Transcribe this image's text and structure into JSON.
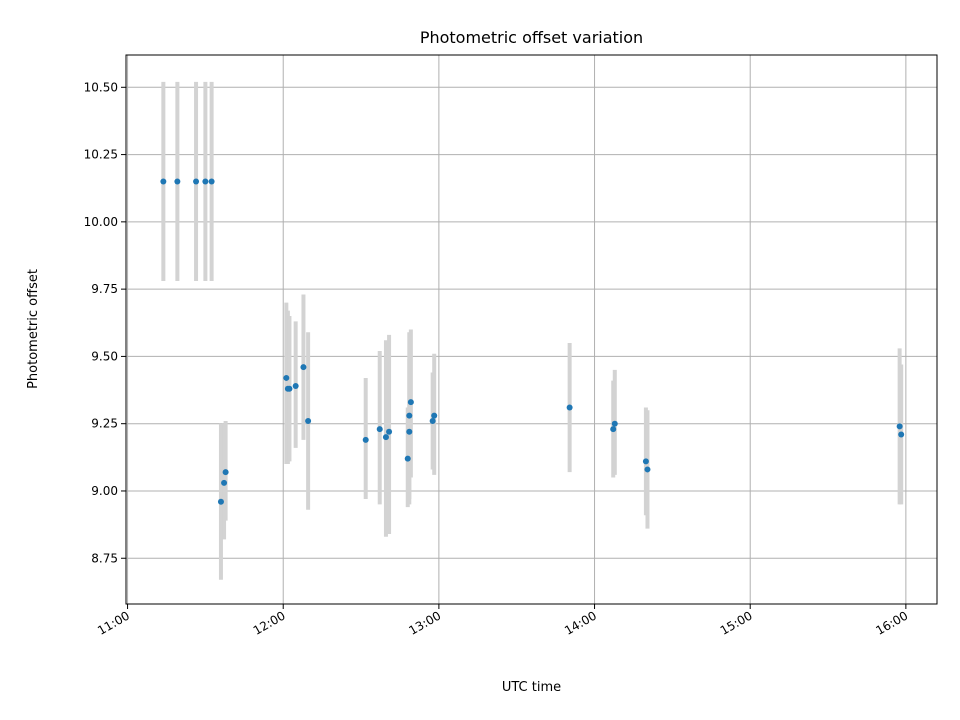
{
  "chart_data": {
    "type": "scatter",
    "title": "Photometric offset variation",
    "xlabel": "UTC time",
    "ylabel": "Photometric offset",
    "x_unit": "hours UTC",
    "xlim": [
      10.99,
      16.2
    ],
    "ylim": [
      8.58,
      10.62
    ],
    "x_ticks": [
      {
        "value": 11,
        "label": "11:00"
      },
      {
        "value": 12,
        "label": "12:00"
      },
      {
        "value": 13,
        "label": "13:00"
      },
      {
        "value": 14,
        "label": "14:00"
      },
      {
        "value": 15,
        "label": "15:00"
      },
      {
        "value": 16,
        "label": "16:00"
      }
    ],
    "y_ticks": [
      {
        "value": 8.75,
        "label": "8.75"
      },
      {
        "value": 9.0,
        "label": "9.00"
      },
      {
        "value": 9.25,
        "label": "9.25"
      },
      {
        "value": 9.5,
        "label": "9.50"
      },
      {
        "value": 9.75,
        "label": "9.75"
      },
      {
        "value": 10.0,
        "label": "10.00"
      },
      {
        "value": 10.25,
        "label": "10.25"
      },
      {
        "value": 10.5,
        "label": "10.50"
      }
    ],
    "grid": true,
    "marker_color": "#1f77b4",
    "errorbar_color": "#d3d3d3",
    "points": [
      {
        "x": 11.23,
        "y": 10.15,
        "lo": 9.78,
        "hi": 10.52
      },
      {
        "x": 11.32,
        "y": 10.15,
        "lo": 9.78,
        "hi": 10.52
      },
      {
        "x": 11.44,
        "y": 10.15,
        "lo": 9.78,
        "hi": 10.52
      },
      {
        "x": 11.5,
        "y": 10.15,
        "lo": 9.78,
        "hi": 10.52
      },
      {
        "x": 11.54,
        "y": 10.15,
        "lo": 9.78,
        "hi": 10.52
      },
      {
        "x": 11.6,
        "y": 8.96,
        "lo": 8.67,
        "hi": 9.25
      },
      {
        "x": 11.62,
        "y": 9.03,
        "lo": 8.82,
        "hi": 9.25
      },
      {
        "x": 11.63,
        "y": 9.07,
        "lo": 8.89,
        "hi": 9.26
      },
      {
        "x": 12.02,
        "y": 9.42,
        "lo": 9.1,
        "hi": 9.7
      },
      {
        "x": 12.03,
        "y": 9.38,
        "lo": 9.1,
        "hi": 9.67
      },
      {
        "x": 12.04,
        "y": 9.38,
        "lo": 9.11,
        "hi": 9.65
      },
      {
        "x": 12.08,
        "y": 9.39,
        "lo": 9.16,
        "hi": 9.63
      },
      {
        "x": 12.13,
        "y": 9.46,
        "lo": 9.19,
        "hi": 9.73
      },
      {
        "x": 12.16,
        "y": 9.26,
        "lo": 8.93,
        "hi": 9.59
      },
      {
        "x": 12.53,
        "y": 9.19,
        "lo": 8.97,
        "hi": 9.42
      },
      {
        "x": 12.62,
        "y": 9.23,
        "lo": 8.95,
        "hi": 9.52
      },
      {
        "x": 12.66,
        "y": 9.2,
        "lo": 8.83,
        "hi": 9.56
      },
      {
        "x": 12.68,
        "y": 9.22,
        "lo": 8.84,
        "hi": 9.58
      },
      {
        "x": 12.8,
        "y": 9.12,
        "lo": 8.94,
        "hi": 9.31
      },
      {
        "x": 12.81,
        "y": 9.22,
        "lo": 8.95,
        "hi": 9.49
      },
      {
        "x": 12.81,
        "y": 9.28,
        "lo": 8.97,
        "hi": 9.59
      },
      {
        "x": 12.82,
        "y": 9.33,
        "lo": 9.05,
        "hi": 9.6
      },
      {
        "x": 12.96,
        "y": 9.26,
        "lo": 9.08,
        "hi": 9.44
      },
      {
        "x": 12.97,
        "y": 9.28,
        "lo": 9.06,
        "hi": 9.51
      },
      {
        "x": 13.84,
        "y": 9.31,
        "lo": 9.07,
        "hi": 9.55
      },
      {
        "x": 14.12,
        "y": 9.23,
        "lo": 9.05,
        "hi": 9.41
      },
      {
        "x": 14.13,
        "y": 9.25,
        "lo": 9.06,
        "hi": 9.45
      },
      {
        "x": 14.33,
        "y": 9.11,
        "lo": 8.91,
        "hi": 9.31
      },
      {
        "x": 14.34,
        "y": 9.08,
        "lo": 8.86,
        "hi": 9.3
      },
      {
        "x": 15.96,
        "y": 9.24,
        "lo": 8.95,
        "hi": 9.53
      },
      {
        "x": 15.97,
        "y": 9.21,
        "lo": 8.95,
        "hi": 9.47
      }
    ]
  }
}
